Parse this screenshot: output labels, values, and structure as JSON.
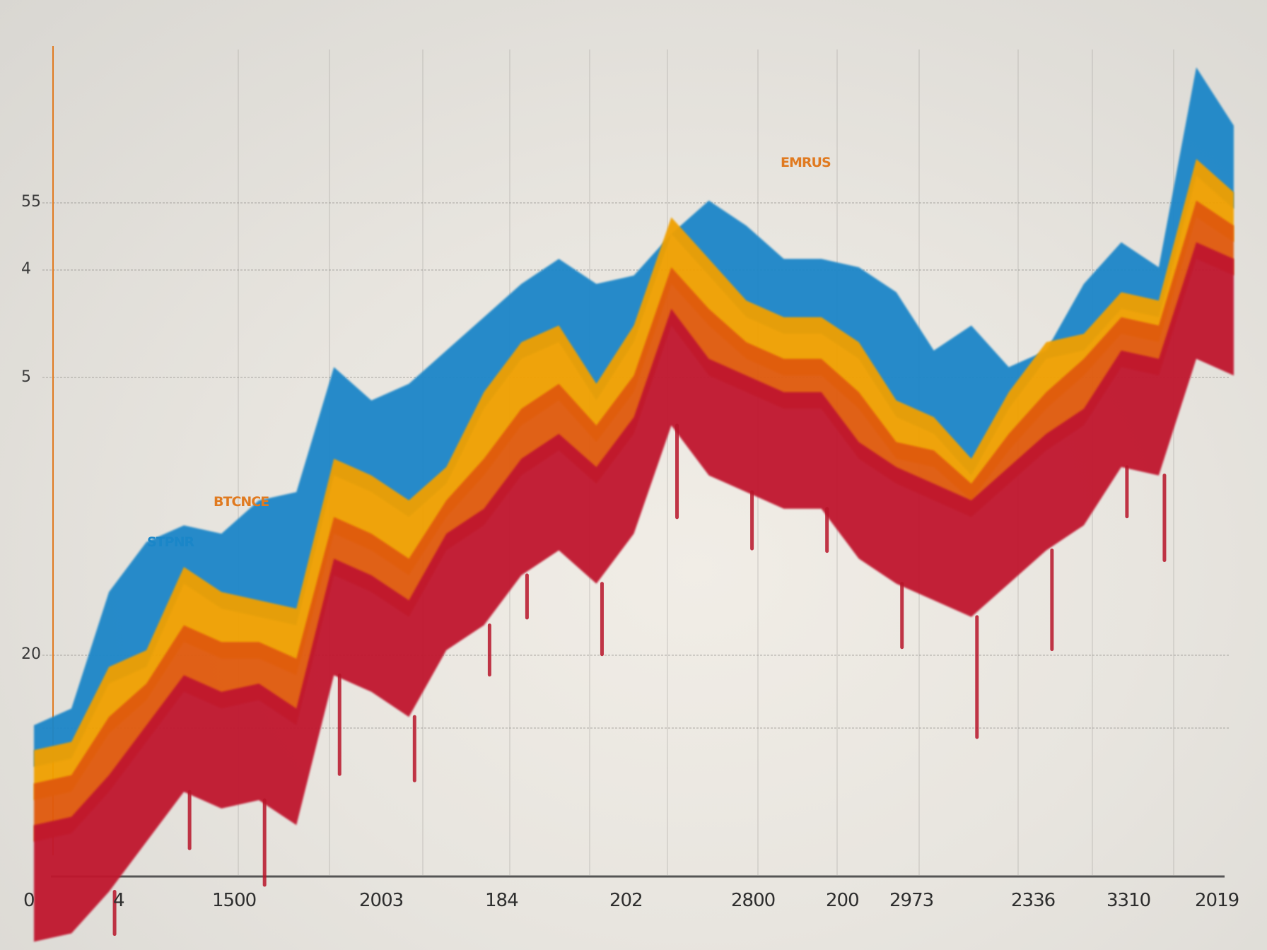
{
  "chart_data": {
    "type": "area",
    "title": "",
    "xlabel": "",
    "ylabel": "",
    "grid": true,
    "stacked": true,
    "y_tick_labels": [
      "55",
      "4",
      "5",
      "20"
    ],
    "x_tick_labels": [
      "0",
      "4",
      "1500",
      "2003",
      "184",
      "202",
      "2800",
      "200",
      "2973",
      "2336",
      "3310",
      "2019"
    ],
    "annotations": [
      "STPNR",
      "BTCNCE",
      "EMRUS"
    ],
    "ylim": [
      0,
      100
    ],
    "x": [
      0,
      1,
      2,
      3,
      4,
      5,
      6,
      7,
      8,
      9,
      10,
      11,
      12,
      13,
      14,
      15,
      16,
      17,
      18,
      19,
      20,
      21,
      22,
      23,
      24,
      25,
      26,
      27,
      28,
      29,
      30,
      31,
      32
    ],
    "series": [
      {
        "color": "#1a86c8",
        "values": [
          18,
          20,
          34,
          40,
          42,
          41,
          45,
          46,
          61,
          57,
          59,
          63,
          67,
          71,
          74,
          71,
          72,
          77,
          81,
          78,
          74,
          74,
          73,
          70,
          63,
          66,
          61,
          63,
          71,
          76,
          73,
          97,
          90
        ]
      },
      {
        "color": "#f0a000",
        "values": [
          15,
          16,
          25,
          27,
          37,
          34,
          33,
          32,
          50,
          48,
          45,
          49,
          58,
          64,
          66,
          59,
          66,
          79,
          74,
          69,
          67,
          67,
          64,
          57,
          55,
          50,
          58,
          64,
          65,
          70,
          69,
          86,
          82
        ]
      },
      {
        "color": "#e05a10",
        "values": [
          11,
          12,
          19,
          23,
          30,
          28,
          28,
          26,
          43,
          41,
          38,
          45,
          50,
          56,
          59,
          54,
          60,
          73,
          68,
          64,
          62,
          62,
          58,
          52,
          51,
          47,
          53,
          58,
          62,
          67,
          66,
          81,
          78
        ]
      },
      {
        "color": "#c0182e",
        "values": [
          6,
          7,
          12,
          18,
          24,
          22,
          23,
          20,
          38,
          36,
          33,
          41,
          44,
          50,
          53,
          49,
          55,
          68,
          62,
          60,
          58,
          58,
          52,
          49,
          47,
          45,
          49,
          53,
          56,
          63,
          62,
          76,
          74
        ]
      }
    ]
  }
}
